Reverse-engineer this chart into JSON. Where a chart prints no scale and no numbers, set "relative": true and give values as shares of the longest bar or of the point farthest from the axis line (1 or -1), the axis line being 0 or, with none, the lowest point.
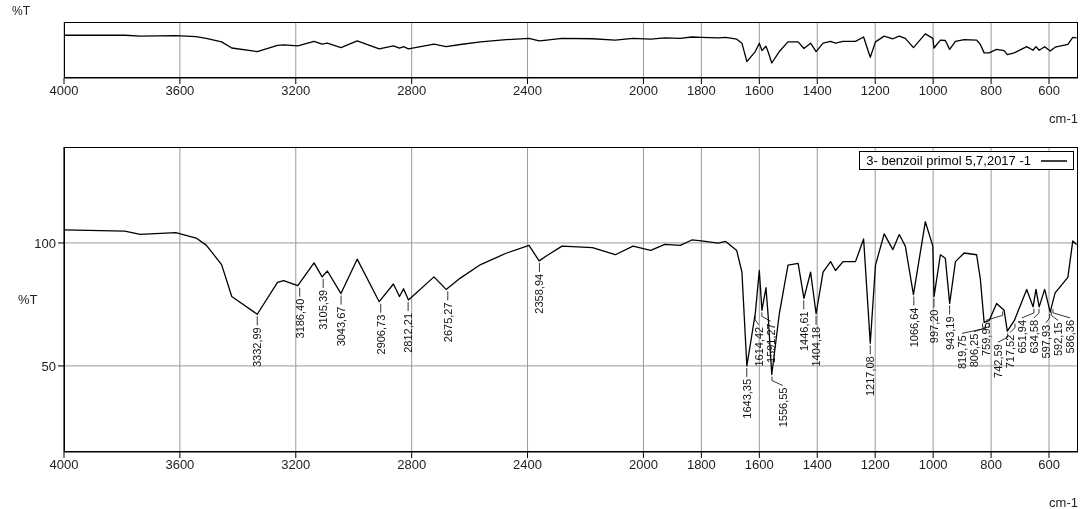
{
  "chart_data": [
    {
      "type": "line",
      "ylabel": "%T",
      "xlabel": "cm-1",
      "relative": true,
      "grid": "x",
      "xlim": [
        4000,
        500
      ],
      "xticks": [
        4000,
        3600,
        3200,
        2800,
        2400,
        2000,
        1800,
        1600,
        1400,
        1200,
        1000,
        800,
        600
      ],
      "x": [
        4000,
        3790,
        3737,
        3614,
        3544,
        3509,
        3456,
        3421,
        3333,
        3263,
        3242,
        3193,
        3137,
        3109,
        3091,
        3044,
        2988,
        2912,
        2863,
        2842,
        2828,
        2811,
        2723,
        2681,
        2632,
        2562,
        2474,
        2395,
        2360,
        2334,
        2281,
        2176,
        2097,
        2036,
        1975,
        1926,
        1873,
        1833,
        1800,
        1742,
        1716,
        1678,
        1660,
        1643,
        1614,
        1600,
        1591,
        1577,
        1570,
        1557,
        1531,
        1501,
        1466,
        1446,
        1423,
        1404,
        1380,
        1354,
        1337,
        1311,
        1268,
        1240,
        1217,
        1199,
        1169,
        1139,
        1117,
        1096,
        1068,
        1027,
        1001,
        997,
        975,
        958,
        943,
        923,
        893,
        850,
        837,
        824,
        807,
        781,
        755,
        744,
        720,
        677,
        655,
        645,
        634,
        615,
        596,
        579,
        535,
        518,
        505
      ],
      "series": [
        {
          "color": "#000000",
          "values": [
            0.97,
            0.97,
            0.95,
            0.96,
            0.94,
            0.9,
            0.82,
            0.68,
            0.6,
            0.74,
            0.75,
            0.73,
            0.83,
            0.77,
            0.79,
            0.69,
            0.84,
            0.66,
            0.73,
            0.68,
            0.71,
            0.66,
            0.77,
            0.71,
            0.76,
            0.82,
            0.87,
            0.9,
            0.84,
            0.86,
            0.9,
            0.89,
            0.86,
            0.9,
            0.88,
            0.91,
            0.9,
            0.93,
            0.92,
            0.91,
            0.92,
            0.88,
            0.79,
            0.37,
            0.6,
            0.79,
            0.62,
            0.72,
            0.6,
            0.34,
            0.6,
            0.82,
            0.82,
            0.67,
            0.79,
            0.6,
            0.79,
            0.83,
            0.79,
            0.83,
            0.83,
            0.93,
            0.47,
            0.82,
            0.95,
            0.89,
            0.95,
            0.9,
            0.69,
            1,
            0.9,
            0.68,
            0.86,
            0.85,
            0.65,
            0.83,
            0.87,
            0.86,
            0.76,
            0.57,
            0.57,
            0.65,
            0.62,
            0.53,
            0.57,
            0.71,
            0.63,
            0.71,
            0.63,
            0.71,
            0.61,
            0.7,
            0.76,
            0.92,
            0.91
          ]
        }
      ]
    },
    {
      "type": "line",
      "ylabel": "%T",
      "xlabel": "cm-1",
      "grid": true,
      "legend": "top right",
      "xlim": [
        4000,
        500
      ],
      "xticks": [
        4000,
        3600,
        3200,
        2800,
        2400,
        2000,
        1800,
        1600,
        1400,
        1200,
        1000,
        800,
        600
      ],
      "ylim": [
        15,
        139
      ],
      "yticks": [
        50,
        100
      ],
      "x": [
        4000,
        3790,
        3737,
        3614,
        3544,
        3509,
        3456,
        3421,
        3333,
        3263,
        3242,
        3193,
        3137,
        3109,
        3091,
        3044,
        2988,
        2912,
        2863,
        2842,
        2828,
        2811,
        2723,
        2681,
        2632,
        2562,
        2474,
        2395,
        2360,
        2334,
        2281,
        2176,
        2097,
        2036,
        1975,
        1926,
        1873,
        1833,
        1800,
        1742,
        1716,
        1678,
        1660,
        1643,
        1614,
        1600,
        1591,
        1577,
        1570,
        1557,
        1531,
        1501,
        1466,
        1446,
        1423,
        1404,
        1380,
        1354,
        1337,
        1311,
        1268,
        1240,
        1217,
        1199,
        1169,
        1139,
        1117,
        1096,
        1068,
        1027,
        1001,
        997,
        975,
        958,
        943,
        923,
        893,
        850,
        837,
        824,
        807,
        781,
        755,
        744,
        720,
        677,
        655,
        645,
        634,
        615,
        596,
        579,
        535,
        518,
        505
      ],
      "series": [
        {
          "name": "3- benzoil primol 5,7,2017 -1",
          "color": "#000000",
          "values": [
            105.3,
            104.8,
            103.5,
            104.2,
            102,
            99.1,
            91.2,
            78.2,
            71,
            84,
            84.7,
            82.6,
            91.9,
            86.2,
            88.6,
            79.4,
            93.4,
            76.1,
            83.3,
            78.2,
            81.4,
            76.8,
            86.2,
            81.1,
            85.7,
            91.2,
            95.8,
            99,
            92.7,
            94.8,
            98.7,
            98.1,
            95.2,
            98.7,
            97,
            99.4,
            99,
            101.2,
            100.8,
            99.9,
            100.6,
            96.9,
            88.1,
            50,
            71.2,
            88.8,
            72.6,
            81.8,
            71.2,
            46.5,
            71.2,
            91,
            91.7,
            77.5,
            88.1,
            71.2,
            88.1,
            92.4,
            88.8,
            92.4,
            92.4,
            101.6,
            59.2,
            91,
            103.7,
            97.3,
            103.4,
            98.7,
            79,
            108.6,
            98.7,
            78.2,
            95.2,
            93.8,
            75.4,
            92.4,
            95.9,
            95.2,
            85.3,
            67.7,
            68.4,
            75.4,
            72.6,
            64.1,
            68.4,
            81.1,
            74,
            81.1,
            74,
            81.1,
            71.9,
            79.7,
            86,
            100.8,
            99.4
          ]
        }
      ],
      "annotations": [
        {
          "text": "3332,99",
          "x": 3332.99,
          "y": 71
        },
        {
          "text": "3186,40",
          "x": 3186.4,
          "y": 82.6
        },
        {
          "text": "3105,39",
          "x": 3105.39,
          "y": 86.2
        },
        {
          "text": "3043,67",
          "x": 3043.67,
          "y": 79.4
        },
        {
          "text": "2906,73",
          "x": 2906.73,
          "y": 76.1
        },
        {
          "text": "2812,21",
          "x": 2812.21,
          "y": 76.8
        },
        {
          "text": "2675,27",
          "x": 2675.27,
          "y": 81.1
        },
        {
          "text": "2358,94",
          "x": 2358.94,
          "y": 92.7
        },
        {
          "text": "1643,35",
          "x": 1643.35,
          "y": 50
        },
        {
          "text": "1614,42",
          "x": 1614.42,
          "y": 71.2
        },
        {
          "text": "1591,27",
          "x": 1591.27,
          "y": 72.6
        },
        {
          "text": "1556,55",
          "x": 1556.55,
          "y": 46.5
        },
        {
          "text": "1446,61",
          "x": 1446.61,
          "y": 77.5
        },
        {
          "text": "1404,18",
          "x": 1404.18,
          "y": 71.2
        },
        {
          "text": "1217,08",
          "x": 1217.08,
          "y": 59.2
        },
        {
          "text": "1066,64",
          "x": 1066.64,
          "y": 79
        },
        {
          "text": "997,20",
          "x": 997.2,
          "y": 78.2
        },
        {
          "text": "943,19",
          "x": 943.19,
          "y": 75.4
        },
        {
          "text": "819,75",
          "x": 819.75,
          "y": 67.7
        },
        {
          "text": "806,25",
          "x": 806.25,
          "y": 68.4
        },
        {
          "text": "759,95",
          "x": 759.95,
          "y": 73
        },
        {
          "text": "742,59",
          "x": 742.59,
          "y": 64.1
        },
        {
          "text": "717,52",
          "x": 717.52,
          "y": 68
        },
        {
          "text": "651,94",
          "x": 651.94,
          "y": 74
        },
        {
          "text": "634,58",
          "x": 634.58,
          "y": 74
        },
        {
          "text": "597,93",
          "x": 597.93,
          "y": 72
        },
        {
          "text": "592,15",
          "x": 592.15,
          "y": 73
        },
        {
          "text": "586,36",
          "x": 586.36,
          "y": 74
        }
      ]
    }
  ]
}
